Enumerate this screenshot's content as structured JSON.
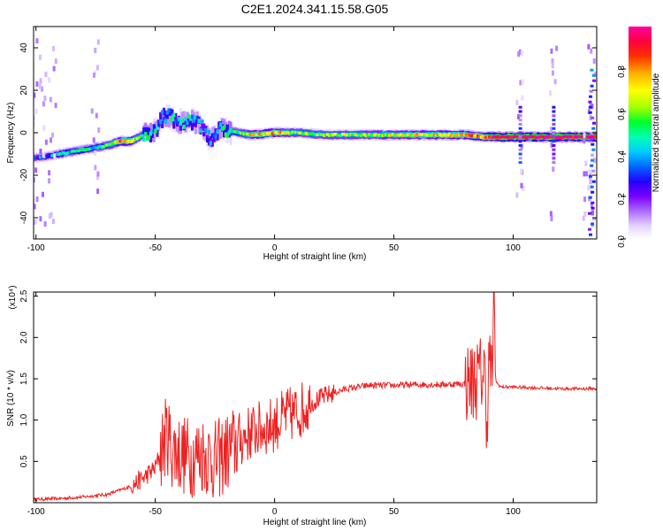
{
  "title": "C2E1.2024.341.15.58.G05",
  "chart_data": [
    {
      "type": "heatmap",
      "xlabel": "Height of straight line (km)",
      "ylabel": "Frequency (Hz)",
      "xlim": [
        -101,
        135
      ],
      "ylim": [
        -50,
        50
      ],
      "xticks": [
        -100,
        -50,
        0,
        50,
        100
      ],
      "yticks": [
        -40,
        -20,
        0,
        20,
        40
      ],
      "colorbar": {
        "label": "Normalized spectral amplitude",
        "range": [
          0,
          1
        ],
        "ticks": [
          0.0,
          0.2,
          0.4,
          0.6,
          0.8
        ],
        "tick_labels": [
          "0.0",
          "0.2",
          "0.4",
          "0.6",
          "0.8"
        ],
        "colormap": [
          "#ffffff",
          "#e6d5ff",
          "#b47cff",
          "#7a00ff",
          "#2400ff",
          "#0066ff",
          "#00ccff",
          "#00ffb0",
          "#00ff2a",
          "#a6ff00",
          "#ffff00",
          "#ffae00",
          "#ff3000",
          "#ff0040",
          "#ff00a0"
        ]
      },
      "ridge": {
        "x": [
          -101,
          -95,
          -90,
          -85,
          -80,
          -75,
          -70,
          -65,
          -60,
          -55,
          -50,
          -47,
          -45,
          -40,
          -35,
          -30,
          -27,
          -25,
          -22,
          -20,
          -15,
          -10,
          0,
          10,
          20,
          40,
          60,
          80,
          88,
          90,
          100,
          120,
          133
        ],
        "freq": [
          -12,
          -11,
          -10,
          -9,
          -8,
          -7,
          -6,
          -4,
          -4,
          -1,
          1,
          7,
          8,
          5,
          6,
          3,
          -3,
          -1,
          2,
          1,
          0,
          -1,
          0,
          0,
          -1,
          -1,
          -1,
          -1,
          -2,
          -2,
          -2,
          -2,
          -2
        ],
        "amplitude": [
          0.3,
          0.35,
          0.45,
          0.5,
          0.45,
          0.5,
          0.55,
          0.8,
          0.75,
          0.5,
          0.45,
          0.4,
          0.45,
          0.4,
          0.45,
          0.35,
          0.4,
          0.4,
          0.45,
          0.5,
          0.55,
          0.7,
          0.75,
          0.6,
          0.6,
          0.65,
          0.7,
          0.75,
          0.8,
          0.95,
          0.95,
          0.95,
          0.95
        ]
      }
    },
    {
      "type": "line",
      "xlabel": "Height of straight line (km)",
      "ylabel": "SNR (10 * v/v)",
      "multiplier_label": "(x10⁴)",
      "xlim": [
        -101,
        135
      ],
      "ylim": [
        0,
        2.55
      ],
      "xticks": [
        -100,
        -50,
        0,
        50,
        100
      ],
      "yticks": [
        0.5,
        1.0,
        1.5,
        2.0,
        2.5
      ],
      "ytick_labels": [
        "0.5",
        "1.0",
        "1.5",
        "2.0",
        "2.5"
      ],
      "color": "#ee2222",
      "series": [
        {
          "x": [
            -101,
            -90,
            -80,
            -70,
            -65,
            -60,
            -55,
            -50,
            -48,
            -45,
            -43,
            -40,
            -35,
            -30,
            -25,
            -20,
            -15,
            -10,
            -5,
            0,
            5,
            10,
            15,
            20,
            25,
            30,
            40,
            50,
            60,
            70,
            80,
            85,
            88,
            89,
            90,
            91,
            92,
            93,
            95,
            100,
            110,
            120,
            130,
            135
          ],
          "y": [
            0.04,
            0.05,
            0.07,
            0.1,
            0.15,
            0.2,
            0.3,
            0.42,
            0.6,
            0.85,
            0.65,
            0.6,
            0.55,
            0.6,
            0.5,
            0.6,
            0.75,
            0.85,
            0.9,
            0.95,
            1.05,
            1.1,
            1.2,
            1.28,
            1.33,
            1.38,
            1.42,
            1.42,
            1.43,
            1.43,
            1.44,
            1.5,
            1.6,
            1.0,
            1.8,
            1.5,
            2.3,
            1.45,
            1.4,
            1.4,
            1.39,
            1.38,
            1.38,
            1.38
          ]
        }
      ]
    }
  ]
}
